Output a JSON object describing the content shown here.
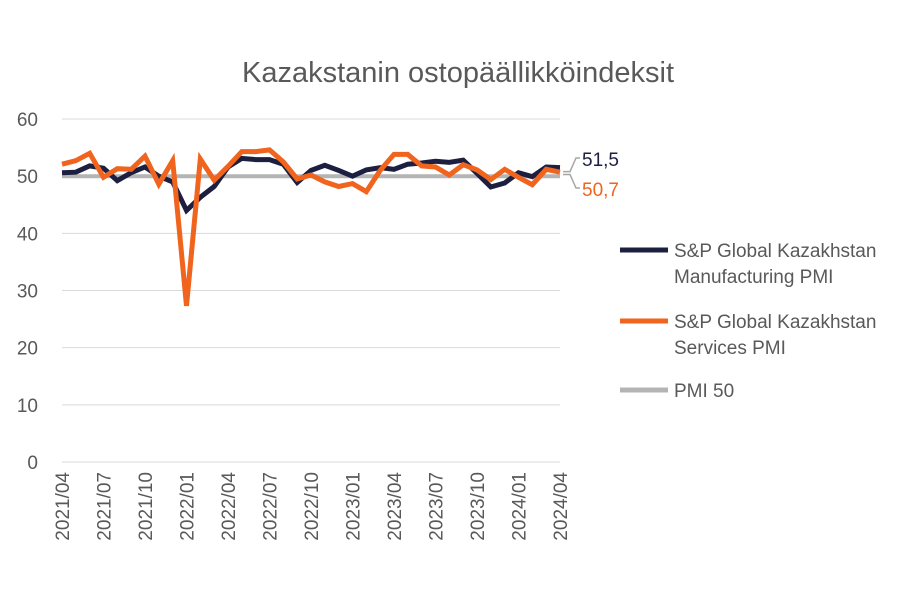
{
  "chart_data": {
    "type": "line",
    "title": "Kazakstanin ostopäällikköindeksit",
    "xlabel": "",
    "ylabel": "",
    "ylim": [
      0,
      60
    ],
    "yticks": [
      "0",
      "10",
      "20",
      "30",
      "40",
      "50",
      "60"
    ],
    "x": [
      "2021/04",
      "2021/05",
      "2021/06",
      "2021/07",
      "2021/08",
      "2021/09",
      "2021/10",
      "2021/11",
      "2021/12",
      "2022/01",
      "2022/02",
      "2022/03",
      "2022/04",
      "2022/05",
      "2022/06",
      "2022/07",
      "2022/08",
      "2022/09",
      "2022/10",
      "2022/11",
      "2022/12",
      "2023/01",
      "2023/02",
      "2023/03",
      "2023/04",
      "2023/05",
      "2023/06",
      "2023/07",
      "2023/08",
      "2023/09",
      "2023/10",
      "2023/11",
      "2023/12",
      "2024/01",
      "2024/02",
      "2024/03",
      "2024/04"
    ],
    "xtick_labels": [
      "2021/04",
      "2021/07",
      "2021/10",
      "2022/01",
      "2022/04",
      "2022/07",
      "2022/10",
      "2023/01",
      "2023/04",
      "2023/07",
      "2023/10",
      "2024/01",
      "2024/04"
    ],
    "grid": true,
    "legend_placement": "right",
    "series": [
      {
        "name": "S&P Global Kazakhstan Manufacturing PMI",
        "color": "#1c1f3f",
        "end_label": "51,5",
        "values": [
          50.6,
          50.7,
          51.8,
          51.4,
          49.2,
          50.6,
          51.6,
          50.0,
          49.0,
          44.0,
          46.3,
          48.2,
          51.6,
          53.1,
          52.9,
          52.9,
          52.1,
          48.9,
          51.0,
          51.9,
          51.0,
          50.0,
          51.1,
          51.5,
          51.2,
          52.1,
          52.3,
          52.6,
          52.4,
          52.8,
          50.5,
          48.1,
          48.8,
          50.6,
          49.9,
          51.6,
          51.5
        ]
      },
      {
        "name": "S&P Global Kazakhstan Services PMI",
        "color": "#f0641e",
        "end_label": "50,7",
        "values": [
          52.1,
          52.7,
          54.0,
          49.8,
          51.3,
          51.2,
          53.5,
          48.6,
          52.7,
          27.3,
          53.0,
          49.3,
          51.7,
          54.3,
          54.3,
          54.6,
          52.5,
          49.5,
          50.2,
          49.0,
          48.2,
          48.7,
          47.3,
          51.0,
          53.8,
          53.8,
          51.8,
          51.6,
          50.2,
          52.0,
          51.1,
          49.4,
          51.2,
          49.8,
          48.5,
          51.2,
          50.7
        ]
      },
      {
        "name": "PMI 50",
        "color": "#b4b4b4",
        "values": [
          50,
          50,
          50,
          50,
          50,
          50,
          50,
          50,
          50,
          50,
          50,
          50,
          50,
          50,
          50,
          50,
          50,
          50,
          50,
          50,
          50,
          50,
          50,
          50,
          50,
          50,
          50,
          50,
          50,
          50,
          50,
          50,
          50,
          50,
          50,
          50,
          50
        ]
      }
    ]
  }
}
